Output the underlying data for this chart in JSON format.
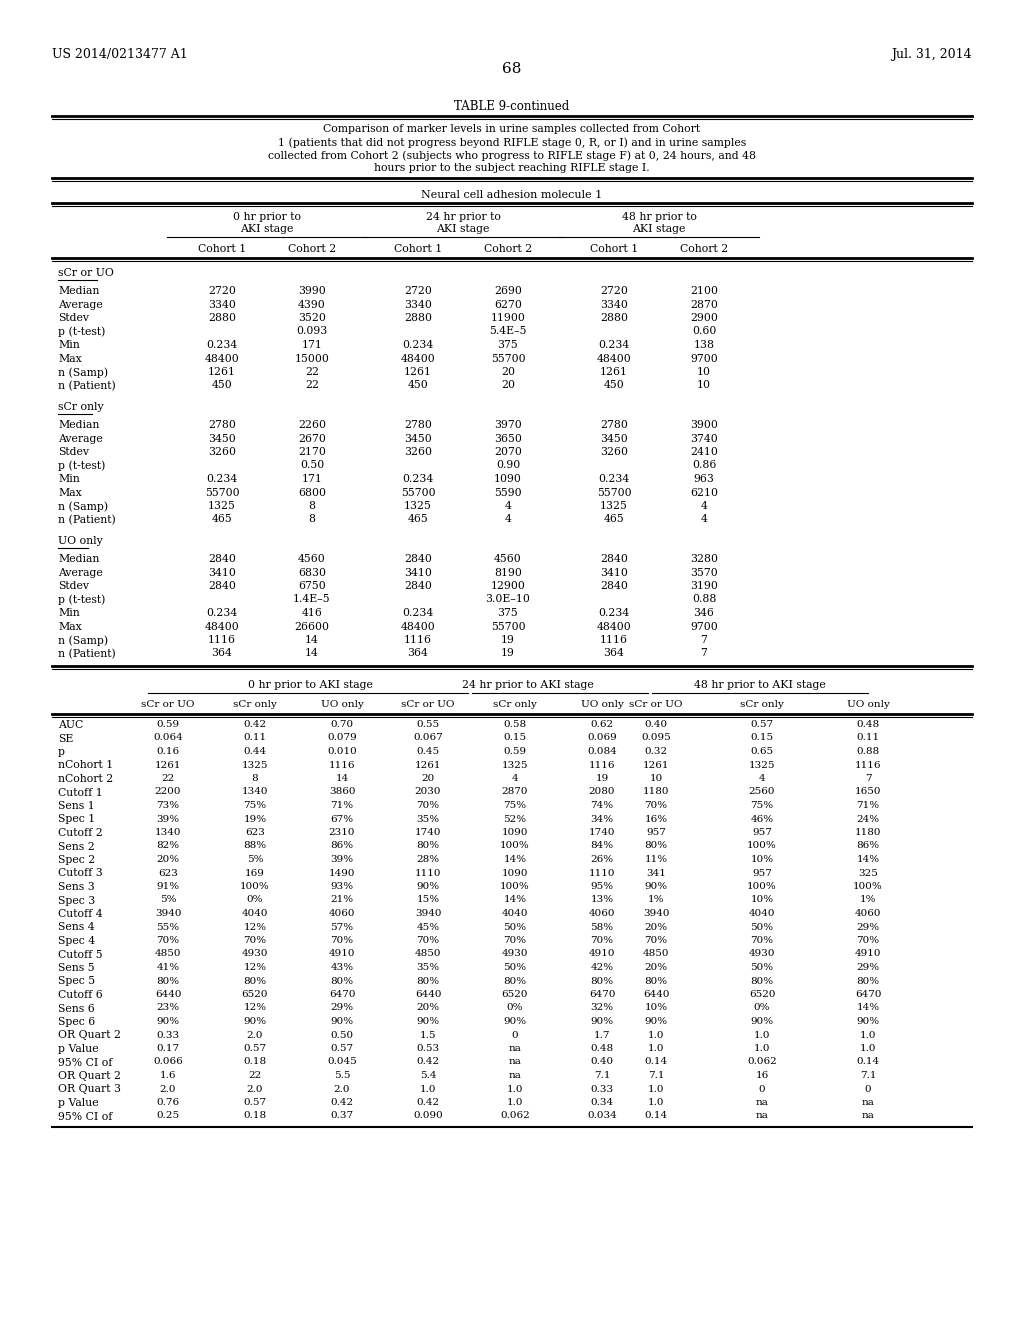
{
  "patent_left": "US 2014/0213477 A1",
  "patent_right": "Jul. 31, 2014",
  "page_number": "68",
  "table_title": "TABLE 9-continued",
  "table_caption_lines": [
    "Comparison of marker levels in urine samples collected from Cohort",
    "1 (patients that did not progress beyond RIFLE stage 0, R, or I) and in urine samples",
    "collected from Cohort 2 (subjects who progress to RIFLE stage F) at 0, 24 hours, and 48",
    "hours prior to the subject reaching RIFLE stage I."
  ],
  "molecule_header": "Neural cell adhesion molecule 1",
  "cohort_headers": [
    "Cohort 1",
    "Cohort 2",
    "Cohort 1",
    "Cohort 2",
    "Cohort 1",
    "Cohort 2"
  ],
  "section1_label": "sCr or UO",
  "section1_rows": [
    [
      "Median",
      "2720",
      "3990",
      "2720",
      "2690",
      "2720",
      "2100"
    ],
    [
      "Average",
      "3340",
      "4390",
      "3340",
      "6270",
      "3340",
      "2870"
    ],
    [
      "Stdev",
      "2880",
      "3520",
      "2880",
      "11900",
      "2880",
      "2900"
    ],
    [
      "p (t-test)",
      "",
      "0.093",
      "",
      "5.4E–5",
      "",
      "0.60"
    ],
    [
      "Min",
      "0.234",
      "171",
      "0.234",
      "375",
      "0.234",
      "138"
    ],
    [
      "Max",
      "48400",
      "15000",
      "48400",
      "55700",
      "48400",
      "9700"
    ],
    [
      "n (Samp)",
      "1261",
      "22",
      "1261",
      "20",
      "1261",
      "10"
    ],
    [
      "n (Patient)",
      "450",
      "22",
      "450",
      "20",
      "450",
      "10"
    ]
  ],
  "section2_label": "sCr only",
  "section2_rows": [
    [
      "Median",
      "2780",
      "2260",
      "2780",
      "3970",
      "2780",
      "3900"
    ],
    [
      "Average",
      "3450",
      "2670",
      "3450",
      "3650",
      "3450",
      "3740"
    ],
    [
      "Stdev",
      "3260",
      "2170",
      "3260",
      "2070",
      "3260",
      "2410"
    ],
    [
      "p (t-test)",
      "",
      "0.50",
      "",
      "0.90",
      "",
      "0.86"
    ],
    [
      "Min",
      "0.234",
      "171",
      "0.234",
      "1090",
      "0.234",
      "963"
    ],
    [
      "Max",
      "55700",
      "6800",
      "55700",
      "5590",
      "55700",
      "6210"
    ],
    [
      "n (Samp)",
      "1325",
      "8",
      "1325",
      "4",
      "1325",
      "4"
    ],
    [
      "n (Patient)",
      "465",
      "8",
      "465",
      "4",
      "465",
      "4"
    ]
  ],
  "section3_label": "UO only",
  "section3_rows": [
    [
      "Median",
      "2840",
      "4560",
      "2840",
      "4560",
      "2840",
      "3280"
    ],
    [
      "Average",
      "3410",
      "6830",
      "3410",
      "8190",
      "3410",
      "3570"
    ],
    [
      "Stdev",
      "2840",
      "6750",
      "2840",
      "12900",
      "2840",
      "3190"
    ],
    [
      "p (t-test)",
      "",
      "1.4E–5",
      "",
      "3.0E–10",
      "",
      "0.88"
    ],
    [
      "Min",
      "0.234",
      "416",
      "0.234",
      "375",
      "0.234",
      "346"
    ],
    [
      "Max",
      "48400",
      "26600",
      "48400",
      "55700",
      "48400",
      "9700"
    ],
    [
      "n (Samp)",
      "1116",
      "14",
      "1116",
      "19",
      "1116",
      "7"
    ],
    [
      "n (Patient)",
      "364",
      "14",
      "364",
      "19",
      "364",
      "7"
    ]
  ],
  "lower_time_headers": [
    "0 hr prior to AKI stage",
    "24 hr prior to AKI stage",
    "48 hr prior to AKI stage"
  ],
  "lower_col_headers": [
    "sCr or UO",
    "sCr only",
    "UO only",
    "sCr or UO",
    "sCr only",
    "UO only",
    "sCr or UO",
    "sCr only",
    "UO only"
  ],
  "lower_rows": [
    [
      "AUC",
      "0.59",
      "0.42",
      "0.70",
      "0.55",
      "0.58",
      "0.62",
      "0.40",
      "0.57",
      "0.48"
    ],
    [
      "SE",
      "0.064",
      "0.11",
      "0.079",
      "0.067",
      "0.15",
      "0.069",
      "0.095",
      "0.15",
      "0.11"
    ],
    [
      "p",
      "0.16",
      "0.44",
      "0.010",
      "0.45",
      "0.59",
      "0.084",
      "0.32",
      "0.65",
      "0.88"
    ],
    [
      "nCohort 1",
      "1261",
      "1325",
      "1116",
      "1261",
      "1325",
      "1116",
      "1261",
      "1325",
      "1116"
    ],
    [
      "nCohort 2",
      "22",
      "8",
      "14",
      "20",
      "4",
      "19",
      "10",
      "4",
      "7"
    ],
    [
      "Cutoff 1",
      "2200",
      "1340",
      "3860",
      "2030",
      "2870",
      "2080",
      "1180",
      "2560",
      "1650"
    ],
    [
      "Sens 1",
      "73%",
      "75%",
      "71%",
      "70%",
      "75%",
      "74%",
      "70%",
      "75%",
      "71%"
    ],
    [
      "Spec 1",
      "39%",
      "19%",
      "67%",
      "35%",
      "52%",
      "34%",
      "16%",
      "46%",
      "24%"
    ],
    [
      "Cutoff 2",
      "1340",
      "623",
      "2310",
      "1740",
      "1090",
      "1740",
      "957",
      "957",
      "1180"
    ],
    [
      "Sens 2",
      "82%",
      "88%",
      "86%",
      "80%",
      "100%",
      "84%",
      "80%",
      "100%",
      "86%"
    ],
    [
      "Spec 2",
      "20%",
      "5%",
      "39%",
      "28%",
      "14%",
      "26%",
      "11%",
      "10%",
      "14%"
    ],
    [
      "Cutoff 3",
      "623",
      "169",
      "1490",
      "1110",
      "1090",
      "1110",
      "341",
      "957",
      "325"
    ],
    [
      "Sens 3",
      "91%",
      "100%",
      "93%",
      "90%",
      "100%",
      "95%",
      "90%",
      "100%",
      "100%"
    ],
    [
      "Spec 3",
      "5%",
      "0%",
      "21%",
      "15%",
      "14%",
      "13%",
      "1%",
      "10%",
      "1%"
    ],
    [
      "Cutoff 4",
      "3940",
      "4040",
      "4060",
      "3940",
      "4040",
      "4060",
      "3940",
      "4040",
      "4060"
    ],
    [
      "Sens 4",
      "55%",
      "12%",
      "57%",
      "45%",
      "50%",
      "58%",
      "20%",
      "50%",
      "29%"
    ],
    [
      "Spec 4",
      "70%",
      "70%",
      "70%",
      "70%",
      "70%",
      "70%",
      "70%",
      "70%",
      "70%"
    ],
    [
      "Cutoff 5",
      "4850",
      "4930",
      "4910",
      "4850",
      "4930",
      "4910",
      "4850",
      "4930",
      "4910"
    ],
    [
      "Sens 5",
      "41%",
      "12%",
      "43%",
      "35%",
      "50%",
      "42%",
      "20%",
      "50%",
      "29%"
    ],
    [
      "Spec 5",
      "80%",
      "80%",
      "80%",
      "80%",
      "80%",
      "80%",
      "80%",
      "80%",
      "80%"
    ],
    [
      "Cutoff 6",
      "6440",
      "6520",
      "6470",
      "6440",
      "6520",
      "6470",
      "6440",
      "6520",
      "6470"
    ],
    [
      "Sens 6",
      "23%",
      "12%",
      "29%",
      "20%",
      "0%",
      "32%",
      "10%",
      "0%",
      "14%"
    ],
    [
      "Spec 6",
      "90%",
      "90%",
      "90%",
      "90%",
      "90%",
      "90%",
      "90%",
      "90%",
      "90%"
    ],
    [
      "OR Quart 2",
      "0.33",
      "2.0",
      "0.50",
      "1.5",
      "0",
      "1.7",
      "1.0",
      "1.0",
      "1.0"
    ],
    [
      "p Value",
      "0.17",
      "0.57",
      "0.57",
      "0.53",
      "na",
      "0.48",
      "1.0",
      "1.0",
      "1.0"
    ],
    [
      "95% CI of",
      "0.066",
      "0.18",
      "0.045",
      "0.42",
      "na",
      "0.40",
      "0.14",
      "0.062",
      "0.14"
    ],
    [
      "OR Quart 2",
      "1.6",
      "22",
      "5.5",
      "5.4",
      "na",
      "7.1",
      "7.1",
      "16",
      "7.1"
    ],
    [
      "OR Quart 3",
      "2.0",
      "2.0",
      "2.0",
      "1.0",
      "1.0",
      "0.33",
      "1.0",
      "0",
      "0"
    ],
    [
      "p Value",
      "0.76",
      "0.57",
      "0.42",
      "0.42",
      "1.0",
      "0.34",
      "1.0",
      "na",
      "na"
    ],
    [
      "95% CI of",
      "0.25",
      "0.18",
      "0.37",
      "0.090",
      "0.062",
      "0.034",
      "0.14",
      "na",
      "na"
    ]
  ]
}
